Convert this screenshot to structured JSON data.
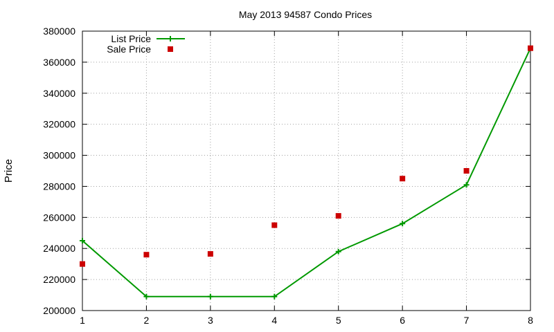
{
  "chart_data": {
    "type": "line",
    "title": "May 2013 94587 Condo Prices",
    "xlabel": "",
    "ylabel": "Price",
    "x": [
      1,
      2,
      3,
      4,
      5,
      6,
      7,
      8
    ],
    "xlim": [
      1,
      8
    ],
    "ylim": [
      200000,
      380000
    ],
    "xticks": [
      "1",
      "2",
      "3",
      "4",
      "5",
      "6",
      "7",
      "8"
    ],
    "yticks": [
      "200000",
      "220000",
      "240000",
      "260000",
      "280000",
      "300000",
      "320000",
      "340000",
      "360000",
      "380000"
    ],
    "grid": true,
    "legend_position": "top-left",
    "series": [
      {
        "name": "List Price",
        "style": "line-with-plus-markers",
        "color": "#009900",
        "values": [
          245000,
          209000,
          209000,
          209000,
          238000,
          256000,
          281000,
          369000
        ]
      },
      {
        "name": "Sale Price",
        "style": "square-markers",
        "color": "#cc0000",
        "values": [
          230000,
          236000,
          236500,
          255000,
          261000,
          285000,
          290000,
          369000
        ]
      }
    ]
  }
}
